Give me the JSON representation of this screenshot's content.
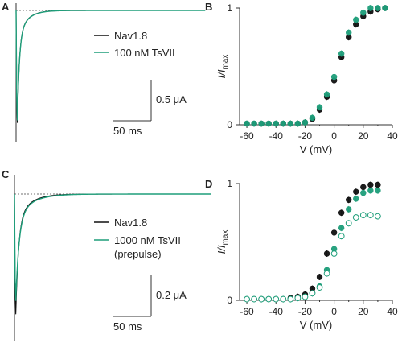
{
  "colors": {
    "black": "#111111",
    "green": "#1f9e7a",
    "axis": "#333333",
    "ref_line": "#444444"
  },
  "panels": {
    "A": {
      "letter": "A",
      "legend": [
        "Nav1.8",
        "100 nM TsVII"
      ],
      "scale_current": "0.5 μA",
      "scale_time": "50 ms"
    },
    "C": {
      "letter": "C",
      "legend": [
        "Nav1.8",
        "1000 nM TsVII",
        "(prepulse)"
      ],
      "scale_current": "0.2 μA",
      "scale_time": "50 ms"
    },
    "B": {
      "letter": "B"
    },
    "D": {
      "letter": "D"
    }
  },
  "chart_data": [
    {
      "panel": "A",
      "type": "line",
      "description_visible": "current traces",
      "series": [
        {
          "name": "Nav1.8",
          "color": "black",
          "peak_uA": -1.05,
          "tau_ms": 11.5,
          "amp_uA": 0.38
        },
        {
          "name": "100 nM TsVII",
          "color": "green",
          "peak_uA": -1.02,
          "tau_ms": 12,
          "amp_uA": 0.37
        }
      ],
      "scale_bars": {
        "current_uA": 0.5,
        "time_ms": 50
      }
    },
    {
      "panel": "B",
      "type": "scatter",
      "xlabel": "V (mV)",
      "ylabel": "I/Imax",
      "xlim": [
        -65,
        40
      ],
      "ylim": [
        0,
        1
      ],
      "xticks": [
        -60,
        -40,
        -20,
        0,
        20,
        40
      ],
      "yticks": [
        0,
        1
      ],
      "x": [
        -60,
        -55,
        -50,
        -45,
        -40,
        -35,
        -30,
        -25,
        -20,
        -15,
        -10,
        -5,
        0,
        5,
        10,
        15,
        20,
        25,
        30,
        35
      ],
      "series": [
        {
          "name": "Nav1.8",
          "color": "black",
          "fill": "solid",
          "values": [
            0.01,
            0.01,
            0.01,
            0.01,
            0.01,
            0.01,
            0.01,
            0.01,
            0.02,
            0.05,
            0.13,
            0.24,
            0.38,
            0.58,
            0.75,
            0.86,
            0.93,
            0.97,
            0.99,
            1.0
          ]
        },
        {
          "name": "100 nM TsVII",
          "color": "green",
          "fill": "solid",
          "values": [
            0.01,
            0.01,
            0.01,
            0.01,
            0.01,
            0.01,
            0.01,
            0.01,
            0.02,
            0.06,
            0.15,
            0.26,
            0.41,
            0.61,
            0.79,
            0.9,
            0.96,
            1.0,
            1.0,
            1.0
          ]
        }
      ]
    },
    {
      "panel": "C",
      "type": "line",
      "description_visible": "current traces",
      "series": [
        {
          "name": "Nav1.8",
          "color": "black",
          "peak_uA": -0.47,
          "tau_ms": 16,
          "amp_uA": 0.165
        },
        {
          "name": "1000 nM TsVII (prepulse)",
          "color": "green",
          "peak_uA": -0.41,
          "tau_ms": 19,
          "amp_uA": 0.165
        }
      ],
      "scale_bars": {
        "current_uA": 0.2,
        "time_ms": 50
      }
    },
    {
      "panel": "D",
      "type": "scatter",
      "xlabel": "V (mV)",
      "ylabel": "I/Imax",
      "xlim": [
        -65,
        40
      ],
      "ylim": [
        0,
        1
      ],
      "xticks": [
        -60,
        -40,
        -20,
        0,
        20,
        40
      ],
      "yticks": [
        0,
        1
      ],
      "x": [
        -60,
        -55,
        -50,
        -45,
        -40,
        -35,
        -30,
        -25,
        -20,
        -15,
        -10,
        -5,
        0,
        5,
        10,
        15,
        20,
        25,
        30
      ],
      "series": [
        {
          "name": "Nav1.8",
          "color": "black",
          "fill": "solid",
          "values": [
            0.01,
            0.01,
            0.01,
            0.01,
            0.01,
            0.01,
            0.02,
            0.03,
            0.05,
            0.1,
            0.2,
            0.4,
            0.58,
            0.75,
            0.86,
            0.93,
            0.97,
            0.99,
            0.99
          ]
        },
        {
          "name": "1000 nM TsVII",
          "color": "green",
          "fill": "solid",
          "values": [
            0.01,
            0.01,
            0.01,
            0.01,
            0.01,
            0.01,
            0.01,
            0.02,
            0.03,
            0.06,
            0.12,
            0.26,
            0.44,
            0.62,
            0.78,
            0.87,
            0.92,
            0.94,
            0.94
          ]
        },
        {
          "name": "1000 nM TsVII (prepulse)",
          "color": "green",
          "fill": "open",
          "values": [
            0.01,
            0.01,
            0.01,
            0.01,
            0.01,
            0.01,
            0.01,
            0.02,
            0.03,
            0.06,
            0.11,
            0.23,
            0.4,
            0.55,
            0.66,
            0.71,
            0.73,
            0.73,
            0.72
          ]
        }
      ]
    }
  ]
}
